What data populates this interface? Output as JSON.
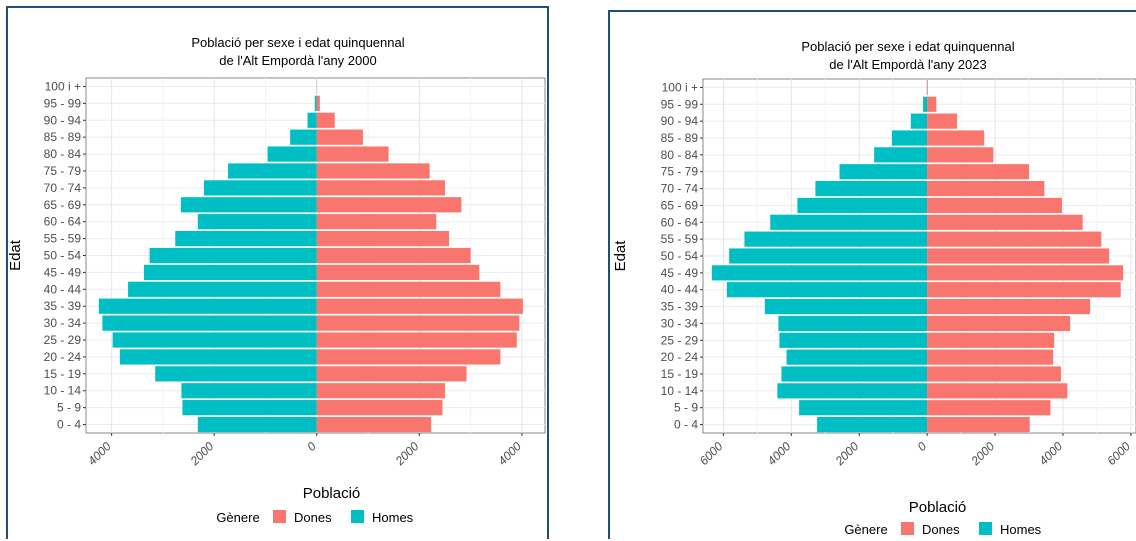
{
  "colors": {
    "dones": "#F8766D",
    "homes": "#00BFC4",
    "frame": "#1f4e79"
  },
  "chart_data": [
    {
      "type": "bar",
      "title": "Població per sexe i edat quinquennal",
      "subtitle": "de l'Alt Empordà l'any 2000",
      "ylabel": "Edat",
      "xlabel": "Població",
      "categories": [
        "0 - 4",
        "5 - 9",
        "10 - 14",
        "15 - 19",
        "20 - 24",
        "25 - 29",
        "30 - 34",
        "35 - 39",
        "40 - 44",
        "45 - 49",
        "50 - 54",
        "55 - 59",
        "60 - 64",
        "65 - 69",
        "70 - 74",
        "75 - 79",
        "80 - 84",
        "85 - 89",
        "90 - 94",
        "95 - 99",
        "100 i +"
      ],
      "series": [
        {
          "name": "Dones",
          "values": [
            2230,
            2450,
            2500,
            2920,
            3580,
            3900,
            3950,
            4020,
            3580,
            3170,
            3000,
            2580,
            2330,
            2820,
            2500,
            2200,
            1400,
            900,
            350,
            60,
            5
          ]
        },
        {
          "name": "Homes",
          "values": [
            2320,
            2620,
            2640,
            3150,
            3840,
            3980,
            4180,
            4250,
            3680,
            3370,
            3260,
            2760,
            2320,
            2650,
            2200,
            1730,
            960,
            520,
            180,
            40,
            3
          ]
        }
      ],
      "xlim": [
        -4500,
        4450
      ],
      "x_ticks": [
        -4000,
        -2000,
        0,
        2000,
        4000
      ],
      "x_tick_labels": [
        "4000",
        "2000",
        "0",
        "2000",
        "4000"
      ],
      "legend": {
        "title": "Gènere",
        "entries": [
          "Dones",
          "Homes"
        ],
        "position": "bottom"
      },
      "grid": true
    },
    {
      "type": "bar",
      "title": "Població per sexe i edat quinquennal",
      "subtitle": "de l'Alt Empordà l'any 2023",
      "ylabel": "Edat",
      "xlabel": "Població",
      "categories": [
        "0 - 4",
        "5 - 9",
        "10 - 14",
        "15 - 19",
        "20 - 24",
        "25 - 29",
        "30 - 34",
        "35 - 39",
        "40 - 44",
        "45 - 49",
        "50 - 54",
        "55 - 59",
        "60 - 64",
        "65 - 69",
        "70 - 74",
        "75 - 79",
        "80 - 84",
        "85 - 89",
        "90 - 94",
        "95 - 99",
        "100 i +"
      ],
      "series": [
        {
          "name": "Dones",
          "values": [
            3020,
            3630,
            4130,
            3940,
            3710,
            3740,
            4210,
            4800,
            5700,
            5770,
            5360,
            5130,
            4580,
            3970,
            3450,
            3000,
            1950,
            1680,
            880,
            270,
            20
          ]
        },
        {
          "name": "Homes",
          "values": [
            3240,
            3770,
            4410,
            4290,
            4140,
            4350,
            4380,
            4780,
            5900,
            6340,
            5830,
            5380,
            4620,
            3820,
            3290,
            2580,
            1560,
            1040,
            480,
            120,
            10
          ]
        }
      ],
      "xlim": [
        -6600,
        6150
      ],
      "x_ticks": [
        -6000,
        -4000,
        -2000,
        0,
        2000,
        4000,
        6000
      ],
      "x_tick_labels": [
        "6000",
        "4000",
        "2000",
        "0",
        "2000",
        "4000",
        "6000"
      ],
      "legend": {
        "title": "Gènere",
        "entries": [
          "Dones",
          "Homes"
        ],
        "position": "bottom"
      },
      "grid": true
    }
  ]
}
